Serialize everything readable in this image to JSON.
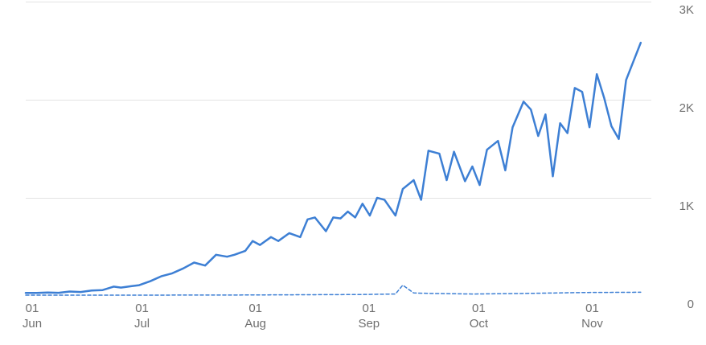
{
  "chart_data": {
    "type": "line",
    "x_start": "2019-06-01",
    "x_end": "2019-11-20",
    "ylim": [
      0,
      3000
    ],
    "grid": true,
    "yticks": [
      {
        "value": 0,
        "label": "0"
      },
      {
        "value": 1000,
        "label": "1K"
      },
      {
        "value": 2000,
        "label": "2K"
      },
      {
        "value": 3000,
        "label": "3K"
      }
    ],
    "xticks": [
      {
        "date": "2019-06-01",
        "day": "01",
        "month": "Jun"
      },
      {
        "date": "2019-07-01",
        "day": "01",
        "month": "Jul"
      },
      {
        "date": "2019-08-01",
        "day": "01",
        "month": "Aug"
      },
      {
        "date": "2019-09-01",
        "day": "01",
        "month": "Sep"
      },
      {
        "date": "2019-10-01",
        "day": "01",
        "month": "Oct"
      },
      {
        "date": "2019-11-01",
        "day": "01",
        "month": "Nov"
      }
    ],
    "series": [
      {
        "style": "solid",
        "color": "#3d7fd4",
        "points": [
          [
            "2019-06-01",
            30
          ],
          [
            "2019-06-04",
            30
          ],
          [
            "2019-06-07",
            35
          ],
          [
            "2019-06-10",
            32
          ],
          [
            "2019-06-13",
            45
          ],
          [
            "2019-06-16",
            40
          ],
          [
            "2019-06-19",
            55
          ],
          [
            "2019-06-22",
            60
          ],
          [
            "2019-06-25",
            95
          ],
          [
            "2019-06-27",
            85
          ],
          [
            "2019-06-30",
            100
          ],
          [
            "2019-07-02",
            110
          ],
          [
            "2019-07-05",
            150
          ],
          [
            "2019-07-08",
            200
          ],
          [
            "2019-07-11",
            230
          ],
          [
            "2019-07-14",
            280
          ],
          [
            "2019-07-17",
            340
          ],
          [
            "2019-07-20",
            310
          ],
          [
            "2019-07-23",
            420
          ],
          [
            "2019-07-26",
            400
          ],
          [
            "2019-07-28",
            420
          ],
          [
            "2019-07-31",
            460
          ],
          [
            "2019-08-02",
            560
          ],
          [
            "2019-08-04",
            520
          ],
          [
            "2019-08-07",
            600
          ],
          [
            "2019-08-09",
            560
          ],
          [
            "2019-08-12",
            640
          ],
          [
            "2019-08-15",
            600
          ],
          [
            "2019-08-17",
            780
          ],
          [
            "2019-08-19",
            800
          ],
          [
            "2019-08-22",
            660
          ],
          [
            "2019-08-24",
            800
          ],
          [
            "2019-08-26",
            790
          ],
          [
            "2019-08-28",
            860
          ],
          [
            "2019-08-30",
            800
          ],
          [
            "2019-09-01",
            940
          ],
          [
            "2019-09-03",
            820
          ],
          [
            "2019-09-05",
            1000
          ],
          [
            "2019-09-07",
            980
          ],
          [
            "2019-09-10",
            820
          ],
          [
            "2019-09-12",
            1090
          ],
          [
            "2019-09-15",
            1180
          ],
          [
            "2019-09-17",
            980
          ],
          [
            "2019-09-19",
            1480
          ],
          [
            "2019-09-22",
            1450
          ],
          [
            "2019-09-24",
            1180
          ],
          [
            "2019-09-26",
            1470
          ],
          [
            "2019-09-29",
            1170
          ],
          [
            "2019-10-01",
            1320
          ],
          [
            "2019-10-03",
            1130
          ],
          [
            "2019-10-05",
            1490
          ],
          [
            "2019-10-08",
            1580
          ],
          [
            "2019-10-10",
            1280
          ],
          [
            "2019-10-12",
            1720
          ],
          [
            "2019-10-15",
            1980
          ],
          [
            "2019-10-17",
            1900
          ],
          [
            "2019-10-19",
            1630
          ],
          [
            "2019-10-21",
            1850
          ],
          [
            "2019-10-23",
            1220
          ],
          [
            "2019-10-25",
            1760
          ],
          [
            "2019-10-27",
            1660
          ],
          [
            "2019-10-29",
            2120
          ],
          [
            "2019-10-31",
            2080
          ],
          [
            "2019-11-02",
            1720
          ],
          [
            "2019-11-04",
            2260
          ],
          [
            "2019-11-06",
            2020
          ],
          [
            "2019-11-08",
            1730
          ],
          [
            "2019-11-10",
            1600
          ],
          [
            "2019-11-12",
            2200
          ],
          [
            "2019-11-16",
            2580
          ]
        ]
      },
      {
        "style": "dashed",
        "color": "#3d7fd4",
        "points": [
          [
            "2019-06-01",
            8
          ],
          [
            "2019-07-01",
            8
          ],
          [
            "2019-08-01",
            10
          ],
          [
            "2019-09-01",
            15
          ],
          [
            "2019-09-10",
            20
          ],
          [
            "2019-09-12",
            110
          ],
          [
            "2019-09-15",
            30
          ],
          [
            "2019-09-20",
            25
          ],
          [
            "2019-10-01",
            20
          ],
          [
            "2019-10-15",
            25
          ],
          [
            "2019-11-01",
            35
          ],
          [
            "2019-11-16",
            38
          ]
        ]
      }
    ]
  }
}
